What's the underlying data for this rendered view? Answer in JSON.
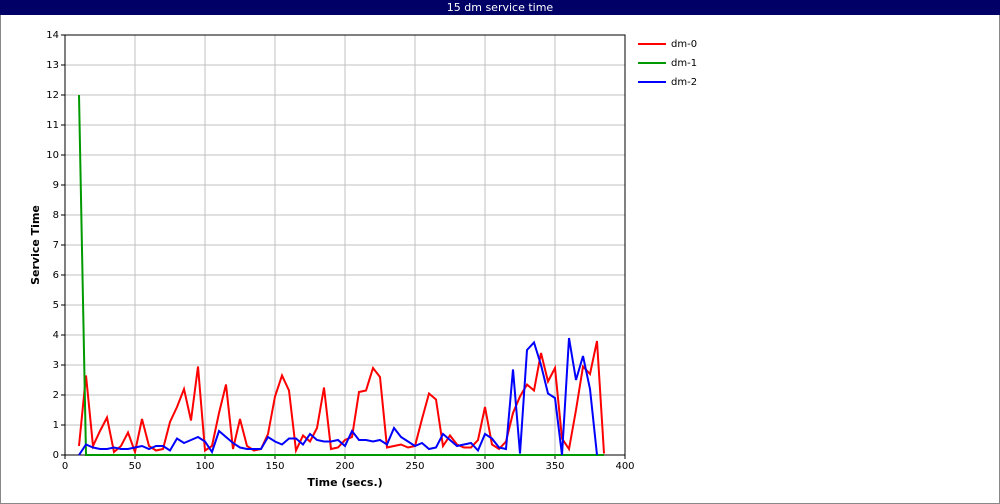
{
  "chart_data": {
    "type": "line",
    "title": "15 dm service time",
    "x_label": "Time (secs.)",
    "y_label": "Service Time",
    "x": [
      10,
      15,
      20,
      25,
      30,
      35,
      40,
      45,
      50,
      55,
      60,
      65,
      70,
      75,
      80,
      85,
      90,
      95,
      100,
      105,
      110,
      115,
      120,
      125,
      130,
      135,
      140,
      145,
      150,
      155,
      160,
      165,
      170,
      175,
      180,
      185,
      190,
      195,
      200,
      205,
      210,
      215,
      220,
      225,
      230,
      235,
      240,
      245,
      250,
      255,
      260,
      265,
      270,
      275,
      280,
      285,
      290,
      295,
      300,
      305,
      310,
      315,
      320,
      325,
      330,
      335,
      340,
      345,
      350,
      355,
      360,
      365,
      370,
      375,
      380,
      385
    ],
    "series": [
      {
        "name": "dm-0",
        "color": "#ff0000",
        "values": [
          0.3,
          2.65,
          0.3,
          0.8,
          1.25,
          0.1,
          0.3,
          0.75,
          0.1,
          1.2,
          0.3,
          0.15,
          0.2,
          1.1,
          1.6,
          2.2,
          1.15,
          2.95,
          0.15,
          0.3,
          1.4,
          2.35,
          0.2,
          1.2,
          0.3,
          0.15,
          0.2,
          0.7,
          1.95,
          2.65,
          2.15,
          0.15,
          0.65,
          0.45,
          0.9,
          2.25,
          0.2,
          0.25,
          0.5,
          0.6,
          2.1,
          2.15,
          2.9,
          2.6,
          0.25,
          0.3,
          0.35,
          0.25,
          0.3,
          1.2,
          2.05,
          1.85,
          0.3,
          0.65,
          0.35,
          0.25,
          0.25,
          0.5,
          1.6,
          0.35,
          0.2,
          0.45,
          1.4,
          1.95,
          2.35,
          2.15,
          3.4,
          2.45,
          2.9,
          0.55,
          0.2,
          1.5,
          2.95,
          2.7,
          3.8,
          0.05
        ]
      },
      {
        "name": "dm-1",
        "color": "#009900",
        "values": [
          12,
          0,
          0,
          0,
          0,
          0,
          0,
          0,
          0,
          0,
          0,
          0,
          0,
          0,
          0,
          0,
          0,
          0,
          0,
          0,
          0,
          0,
          0,
          0,
          0,
          0,
          0,
          0,
          0,
          0,
          0,
          0,
          0,
          0,
          0,
          0,
          0,
          0,
          0,
          0,
          0,
          0,
          0,
          0,
          0,
          0,
          0,
          0,
          0,
          0,
          0,
          0,
          0,
          0,
          0,
          0,
          0,
          0,
          0,
          0,
          0,
          0,
          0,
          0,
          0,
          0,
          0,
          0,
          0,
          0,
          0,
          0,
          0,
          0,
          0,
          0
        ]
      },
      {
        "name": "dm-2",
        "color": "#0000ff",
        "values": [
          0,
          0.35,
          0.25,
          0.2,
          0.2,
          0.25,
          0.2,
          0.2,
          0.25,
          0.3,
          0.2,
          0.3,
          0.3,
          0.15,
          0.55,
          0.4,
          0.5,
          0.6,
          0.45,
          0.1,
          0.8,
          0.6,
          0.4,
          0.25,
          0.2,
          0.2,
          0.2,
          0.6,
          0.45,
          0.35,
          0.55,
          0.55,
          0.35,
          0.7,
          0.5,
          0.45,
          0.45,
          0.5,
          0.3,
          0.8,
          0.5,
          0.5,
          0.45,
          0.5,
          0.35,
          0.9,
          0.6,
          0.45,
          0.3,
          0.4,
          0.2,
          0.25,
          0.7,
          0.5,
          0.3,
          0.35,
          0.4,
          0.15,
          0.7,
          0.55,
          0.25,
          0.2,
          2.85,
          0.05,
          3.5,
          3.75,
          3.0,
          2.05,
          1.9,
          0,
          3.9,
          2.5,
          3.3,
          2.2,
          0,
          null
        ]
      }
    ],
    "xlim": [
      0,
      400
    ],
    "xticks": [
      0,
      50,
      100,
      150,
      200,
      250,
      300,
      350,
      400
    ],
    "ylim": [
      0,
      14
    ],
    "yticks": [
      0,
      1,
      2,
      3,
      4,
      5,
      6,
      7,
      8,
      9,
      10,
      11,
      12,
      13,
      14
    ],
    "grid": true,
    "legend": "right"
  }
}
